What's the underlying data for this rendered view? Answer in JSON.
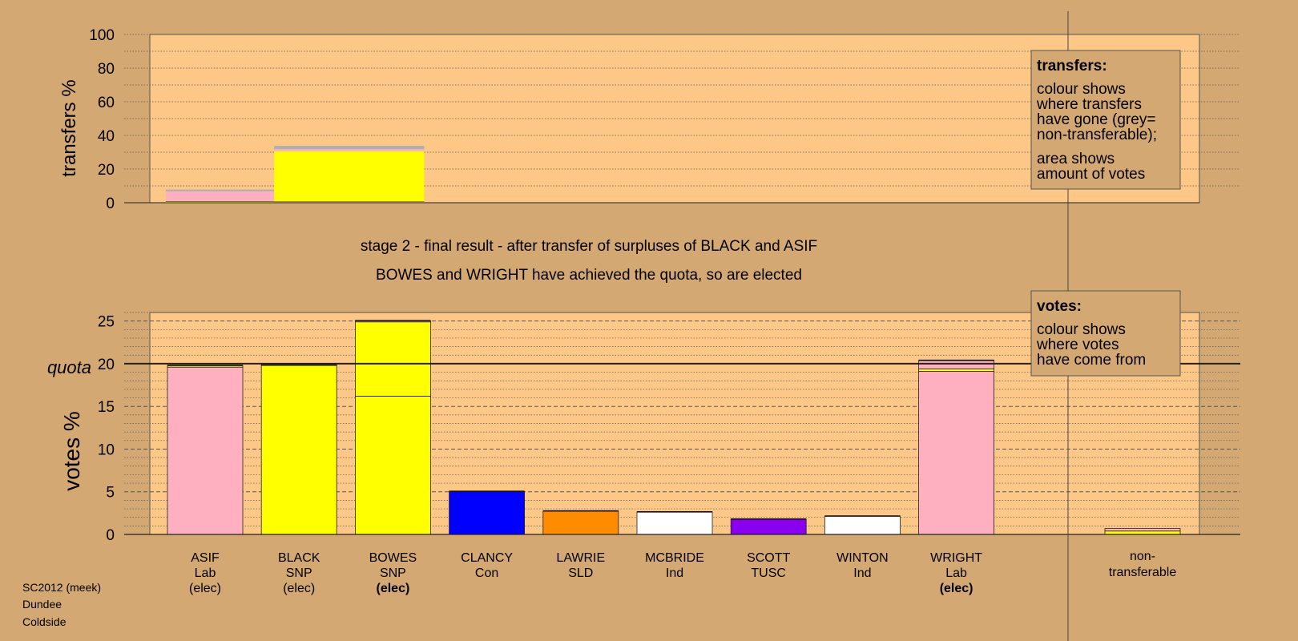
{
  "chart_data": [
    {
      "type": "bar",
      "panel": "transfers",
      "ylabel": "transfers %",
      "ylim": [
        0,
        100
      ],
      "yticks": [
        0,
        20,
        40,
        60,
        80,
        100
      ],
      "grid": "dotted",
      "legend": {
        "placement": "top-right",
        "title": "transfers:",
        "lines_a": [
          "colour shows",
          "where transfers",
          "have gone (grey=",
          "non-transferable);"
        ],
        "lines_b": [
          "area shows",
          "amount of votes"
        ]
      },
      "blocks": [
        {
          "from": "ASIF",
          "width_share": 0.26,
          "segments": [
            {
              "to": "SNP",
              "color": "#ffff00",
              "value": 0.8
            },
            {
              "to": "Lab",
              "color": "#ffb0c0",
              "value": 6.0
            },
            {
              "to": "non-transferable",
              "color": "#b0b0b0",
              "value": 1.0
            }
          ]
        },
        {
          "from": "BLACK",
          "width_share": 0.36,
          "segments": [
            {
              "to": "Lab",
              "color": "#ffb0c0",
              "value": 0.6
            },
            {
              "to": "SNP",
              "color": "#ffff00",
              "value": 30.0
            },
            {
              "to": "Lab",
              "color": "#ffb0c0",
              "value": 1.2
            },
            {
              "to": "non-transferable",
              "color": "#b0b0b0",
              "value": 2.0
            }
          ]
        }
      ]
    },
    {
      "type": "bar",
      "panel": "votes",
      "title_lines": [
        "stage 2 - final result - after transfer of surpluses of BLACK and ASIF",
        "BOWES and WRIGHT have achieved the quota, so are elected"
      ],
      "ylabel": "votes %",
      "ylim": [
        0,
        26
      ],
      "yticks": [
        0,
        5,
        10,
        15,
        20,
        25
      ],
      "quota_label": "quota",
      "quota": 20,
      "grid": "dotted",
      "legend": {
        "placement": "top-right",
        "title": "votes:",
        "lines": [
          "colour shows",
          "where votes",
          "have come from"
        ]
      },
      "categories": [
        {
          "name": "ASIF",
          "party": "Lab",
          "status": "(elec)",
          "bold": false
        },
        {
          "name": "BLACK",
          "party": "SNP",
          "status": "(elec)",
          "bold": false
        },
        {
          "name": "BOWES",
          "party": "SNP",
          "status": "(elec)",
          "bold": true
        },
        {
          "name": "CLANCY",
          "party": "Con",
          "status": "",
          "bold": false
        },
        {
          "name": "LAWRIE",
          "party": "SLD",
          "status": "",
          "bold": false
        },
        {
          "name": "MCBRIDE",
          "party": "Ind",
          "status": "",
          "bold": false
        },
        {
          "name": "SCOTT",
          "party": "TUSC",
          "status": "",
          "bold": false
        },
        {
          "name": "WINTON",
          "party": "Ind",
          "status": "",
          "bold": false
        },
        {
          "name": "WRIGHT",
          "party": "Lab",
          "status": "(elec)",
          "bold": true
        }
      ],
      "bars": [
        {
          "segments": [
            {
              "color": "#ffb0c0",
              "value": 19.6
            },
            {
              "color": "#ffff00",
              "value": 0.2
            }
          ]
        },
        {
          "segments": [
            {
              "color": "#ffff00",
              "value": 19.8
            },
            {
              "color": "#ffb0c0",
              "value": 0.05
            }
          ]
        },
        {
          "segments": [
            {
              "color": "#ffff00",
              "value": 16.2
            },
            {
              "color": "#ffff00",
              "value": 8.7
            },
            {
              "color": "#ffb0c0",
              "value": 0.15
            }
          ]
        },
        {
          "segments": [
            {
              "color": "#0000ff",
              "value": 5.05
            }
          ]
        },
        {
          "segments": [
            {
              "color": "#ff8c00",
              "value": 2.75
            }
          ]
        },
        {
          "segments": [
            {
              "color": "#ffffff",
              "value": 2.65
            }
          ]
        },
        {
          "segments": [
            {
              "color": "#8800ee",
              "value": 1.8
            }
          ]
        },
        {
          "segments": [
            {
              "color": "#ffffff",
              "value": 2.15
            }
          ]
        },
        {
          "segments": [
            {
              "color": "#ffb0c0",
              "value": 19.1
            },
            {
              "color": "#ffff00",
              "value": 0.3
            },
            {
              "color": "#ffb0c0",
              "value": 1.0
            }
          ]
        }
      ],
      "nontransferable": {
        "label_lines": [
          "non-",
          "transferable"
        ],
        "segments": [
          {
            "color": "#ffff00",
            "value": 0.4
          },
          {
            "color": "#ffb0c0",
            "value": 0.3
          }
        ]
      }
    }
  ],
  "footer": {
    "line1": "SC2012 (meek)",
    "line2": "Dundee",
    "line3": "Coldside"
  },
  "colors": {
    "background": "#d4a873",
    "plot_bg": "#fdc887",
    "legend_bg": "#d4a873"
  }
}
